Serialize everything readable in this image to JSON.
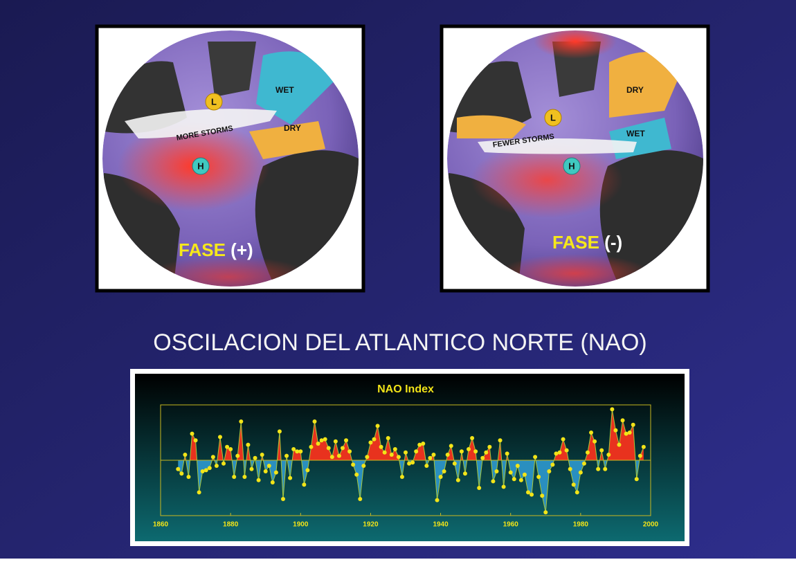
{
  "panels": [
    {
      "wet": "WET",
      "dry": "DRY",
      "storms": "MORE STORMS",
      "low": "L",
      "high": "H",
      "phase_word": "FASE",
      "phase_sign": "(+)"
    },
    {
      "wet": "WET",
      "dry": "DRY",
      "storms": "FEWER STORMS",
      "low": "L",
      "high": "H",
      "phase_word": "FASE",
      "phase_sign": "(-)"
    }
  ],
  "title": "OSCILACION DEL ATLANTICO NORTE (NAO)",
  "chart_data": {
    "type": "area-line",
    "title": "NAO Index",
    "x": [
      1865,
      1866,
      1867,
      1868,
      1869,
      1870,
      1871,
      1872,
      1873,
      1874,
      1875,
      1876,
      1877,
      1878,
      1879,
      1880,
      1881,
      1882,
      1883,
      1884,
      1885,
      1886,
      1887,
      1888,
      1889,
      1890,
      1891,
      1892,
      1893,
      1894,
      1895,
      1896,
      1897,
      1898,
      1899,
      1900,
      1901,
      1902,
      1903,
      1904,
      1905,
      1906,
      1907,
      1908,
      1909,
      1910,
      1911,
      1912,
      1913,
      1914,
      1915,
      1916,
      1917,
      1918,
      1919,
      1920,
      1921,
      1922,
      1923,
      1924,
      1925,
      1926,
      1927,
      1928,
      1929,
      1930,
      1931,
      1932,
      1933,
      1934,
      1935,
      1936,
      1937,
      1938,
      1939,
      1940,
      1941,
      1942,
      1943,
      1944,
      1945,
      1946,
      1947,
      1948,
      1949,
      1950,
      1951,
      1952,
      1953,
      1954,
      1955,
      1956,
      1957,
      1958,
      1959,
      1960,
      1961,
      1962,
      1963,
      1964,
      1965,
      1966,
      1967,
      1968,
      1969,
      1970,
      1971,
      1972,
      1973,
      1974,
      1975,
      1976,
      1977,
      1978,
      1979,
      1980,
      1981,
      1982,
      1983,
      1984,
      1985,
      1986,
      1987,
      1988,
      1989,
      1990,
      1991,
      1992,
      1993,
      1994,
      1995,
      1996,
      1997,
      1998
    ],
    "values": [
      -0.8,
      -1.2,
      0.5,
      -1.5,
      2.4,
      1.8,
      -2.9,
      -1.0,
      -0.9,
      -0.7,
      0.3,
      -0.5,
      2.1,
      -0.3,
      1.2,
      1.0,
      -1.5,
      0.4,
      3.5,
      -1.5,
      1.4,
      -0.8,
      0.2,
      -1.8,
      0.5,
      -1.0,
      -0.5,
      -2.0,
      -1.1,
      2.6,
      -3.5,
      0.4,
      -1.6,
      1.0,
      0.8,
      0.8,
      -2.2,
      -0.9,
      1.2,
      3.5,
      1.5,
      1.8,
      1.9,
      1.1,
      0.3,
      1.7,
      0.4,
      1.1,
      1.8,
      0.8,
      -0.4,
      -1.3,
      -3.5,
      -0.5,
      0.3,
      1.6,
      1.9,
      3.1,
      1.2,
      0.7,
      2.0,
      0.5,
      1.0,
      0.3,
      -1.5,
      0.7,
      -0.3,
      -0.2,
      0.8,
      1.4,
      1.5,
      -0.5,
      0.2,
      0.5,
      -3.6,
      -1.5,
      -1.0,
      0.5,
      1.3,
      -0.3,
      -1.8,
      0.8,
      -1.2,
      1.0,
      2.0,
      0.8,
      -2.5,
      0.2,
      0.7,
      1.2,
      -1.9,
      -1.0,
      1.8,
      -2.4,
      0.6,
      -1.1,
      -1.7,
      -0.5,
      -1.8,
      -1.3,
      -2.9,
      -3.1,
      0.3,
      -1.5,
      -3.2,
      -4.7,
      -1.0,
      -0.4,
      0.6,
      0.7,
      1.9,
      0.9,
      -0.8,
      -2.2,
      -2.9,
      -1.1,
      -0.3,
      0.7,
      2.5,
      1.7,
      -0.8,
      0.9,
      -0.8,
      0.5,
      4.6,
      2.7,
      1.4,
      3.6,
      2.4,
      2.5,
      3.2,
      -1.7,
      0.4,
      1.2
    ],
    "xlim": [
      1860,
      2000
    ],
    "xticks": [
      1860,
      1880,
      1900,
      1920,
      1940,
      1960,
      1980,
      2000
    ],
    "ylim": [
      -5,
      5
    ],
    "positive_color": "#e8321e",
    "negative_color": "#2a8fc0",
    "line_color": "#a8c83a",
    "point_color": "#f2e418"
  }
}
